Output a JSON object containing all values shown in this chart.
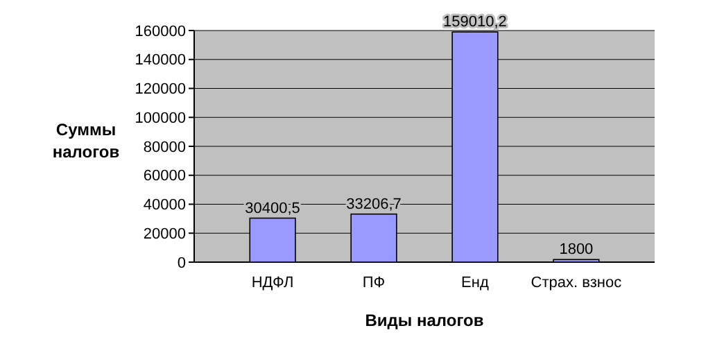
{
  "chart_data": {
    "type": "bar",
    "xlabel": "Виды налогов",
    "ylabel": "Суммы налогов",
    "categories": [
      "НДФЛ",
      "ПФ",
      "Енд",
      "Страх. взнос"
    ],
    "values": [
      30400.5,
      33206.7,
      159010.2,
      1800
    ],
    "value_labels": [
      "30400,5",
      "33206,7",
      "159010,2",
      "1800"
    ],
    "color": "#9999ff",
    "ylim": [
      0,
      160000
    ],
    "yticks": [
      0,
      20000,
      40000,
      60000,
      80000,
      100000,
      120000,
      140000,
      160000
    ],
    "grid": "y"
  }
}
